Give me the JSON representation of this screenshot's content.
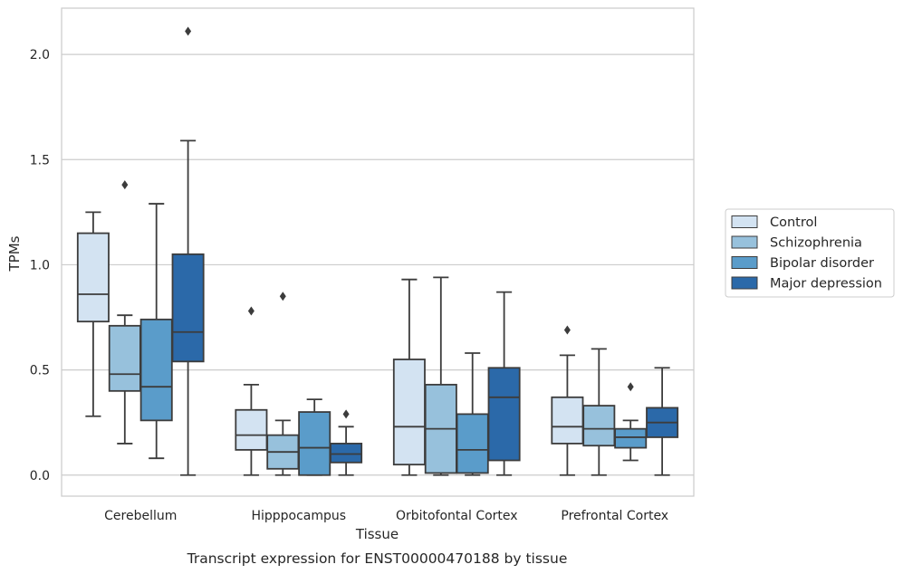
{
  "caption": "Transcript expression for ENST00000470188 by tissue",
  "chart_data": {
    "type": "box",
    "xlabel": "Tissue",
    "ylabel": "TPMs",
    "ylim": [
      -0.1,
      2.22
    ],
    "yticks": [
      0.0,
      0.5,
      1.0,
      1.5,
      2.0
    ],
    "ytick_labels": [
      "0.0",
      "0.5",
      "1.0",
      "1.5",
      "2.0"
    ],
    "grid": "horizontal",
    "legend_position": "right",
    "categories": [
      "Cerebellum",
      "Hipppocampus",
      "Orbitofontal Cortex",
      "Prefrontal Cortex"
    ],
    "series": [
      {
        "name": "Control",
        "color": "#d3e3f2",
        "boxes": [
          {
            "whisker_low": 0.28,
            "q1": 0.73,
            "median": 0.86,
            "q3": 1.15,
            "whisker_high": 1.25,
            "outliers": []
          },
          {
            "whisker_low": 0.0,
            "q1": 0.12,
            "median": 0.19,
            "q3": 0.31,
            "whisker_high": 0.43,
            "outliers": [
              0.78
            ]
          },
          {
            "whisker_low": 0.0,
            "q1": 0.05,
            "median": 0.23,
            "q3": 0.55,
            "whisker_high": 0.93,
            "outliers": []
          },
          {
            "whisker_low": 0.0,
            "q1": 0.15,
            "median": 0.23,
            "q3": 0.37,
            "whisker_high": 0.57,
            "outliers": [
              0.69
            ]
          }
        ]
      },
      {
        "name": "Schizophrenia",
        "color": "#97c1dc",
        "boxes": [
          {
            "whisker_low": 0.15,
            "q1": 0.4,
            "median": 0.48,
            "q3": 0.71,
            "whisker_high": 0.76,
            "outliers": [
              1.38
            ]
          },
          {
            "whisker_low": 0.0,
            "q1": 0.03,
            "median": 0.11,
            "q3": 0.19,
            "whisker_high": 0.26,
            "outliers": [
              0.85
            ]
          },
          {
            "whisker_low": 0.0,
            "q1": 0.01,
            "median": 0.22,
            "q3": 0.43,
            "whisker_high": 0.94,
            "outliers": []
          },
          {
            "whisker_low": 0.0,
            "q1": 0.14,
            "median": 0.22,
            "q3": 0.33,
            "whisker_high": 0.6,
            "outliers": []
          }
        ]
      },
      {
        "name": "Bipolar disorder",
        "color": "#5a9cca",
        "boxes": [
          {
            "whisker_low": 0.08,
            "q1": 0.26,
            "median": 0.42,
            "q3": 0.74,
            "whisker_high": 1.29,
            "outliers": []
          },
          {
            "whisker_low": 0.0,
            "q1": 0.0,
            "median": 0.13,
            "q3": 0.3,
            "whisker_high": 0.36,
            "outliers": []
          },
          {
            "whisker_low": 0.0,
            "q1": 0.01,
            "median": 0.12,
            "q3": 0.29,
            "whisker_high": 0.58,
            "outliers": []
          },
          {
            "whisker_low": 0.07,
            "q1": 0.13,
            "median": 0.18,
            "q3": 0.22,
            "whisker_high": 0.26,
            "outliers": [
              0.42
            ]
          }
        ]
      },
      {
        "name": "Major depression",
        "color": "#2b69a9",
        "boxes": [
          {
            "whisker_low": 0.0,
            "q1": 0.54,
            "median": 0.68,
            "q3": 1.05,
            "whisker_high": 1.59,
            "outliers": [
              2.11
            ]
          },
          {
            "whisker_low": 0.0,
            "q1": 0.06,
            "median": 0.1,
            "q3": 0.15,
            "whisker_high": 0.23,
            "outliers": [
              0.29
            ]
          },
          {
            "whisker_low": 0.0,
            "q1": 0.07,
            "median": 0.37,
            "q3": 0.51,
            "whisker_high": 0.87,
            "outliers": []
          },
          {
            "whisker_low": 0.0,
            "q1": 0.18,
            "median": 0.25,
            "q3": 0.32,
            "whisker_high": 0.51,
            "outliers": []
          }
        ]
      }
    ]
  }
}
